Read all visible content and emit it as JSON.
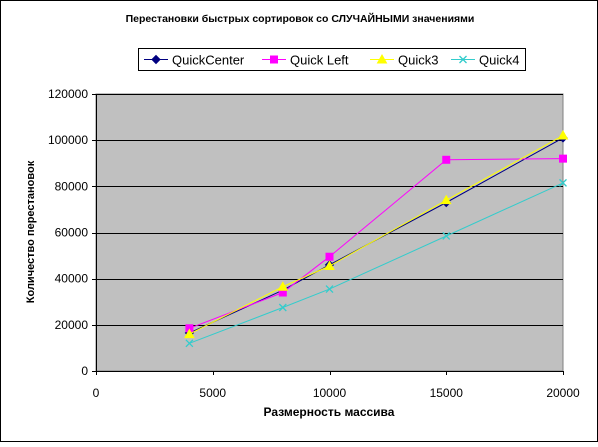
{
  "chart_data": {
    "type": "line",
    "title": "Перестановки быстрых сортировок со СЛУЧАЙНЫМИ значениями",
    "xlabel": "Размерность массива",
    "ylabel": "Количество перестановок",
    "xlim": [
      0,
      20000
    ],
    "ylim": [
      0,
      120000
    ],
    "x_ticks": [
      0,
      5000,
      10000,
      15000,
      20000
    ],
    "y_ticks": [
      0,
      20000,
      40000,
      60000,
      80000,
      100000,
      120000
    ],
    "x_tick_labels": [
      "0",
      "5000",
      "10000",
      "15000",
      "20000"
    ],
    "y_tick_labels": [
      "0",
      "20000",
      "40000",
      "60000",
      "80000",
      "100000",
      "120000"
    ],
    "grid": true,
    "legend_position": "top",
    "plot_background": "#c0c0c0",
    "series": [
      {
        "name": "QuickCenter",
        "color": "#000080",
        "marker": "diamond",
        "x": [
          4000,
          8000,
          10000,
          15000,
          20000
        ],
        "y": [
          16500,
          35000,
          46000,
          73000,
          101000
        ]
      },
      {
        "name": "Quick Left",
        "color": "#ff00ff",
        "marker": "square",
        "x": [
          4000,
          8000,
          10000,
          15000,
          20000
        ],
        "y": [
          18500,
          34000,
          49500,
          91500,
          92000
        ]
      },
      {
        "name": "Quick3",
        "color": "#ffff00",
        "marker": "triangle",
        "x": [
          4000,
          8000,
          10000,
          15000,
          20000
        ],
        "y": [
          16000,
          36500,
          45500,
          74000,
          102000
        ]
      },
      {
        "name": "Quick4",
        "color": "#33cccc",
        "marker": "x",
        "x": [
          4000,
          8000,
          10000,
          15000,
          20000
        ],
        "y": [
          12000,
          27500,
          35500,
          58500,
          81500
        ]
      }
    ]
  }
}
